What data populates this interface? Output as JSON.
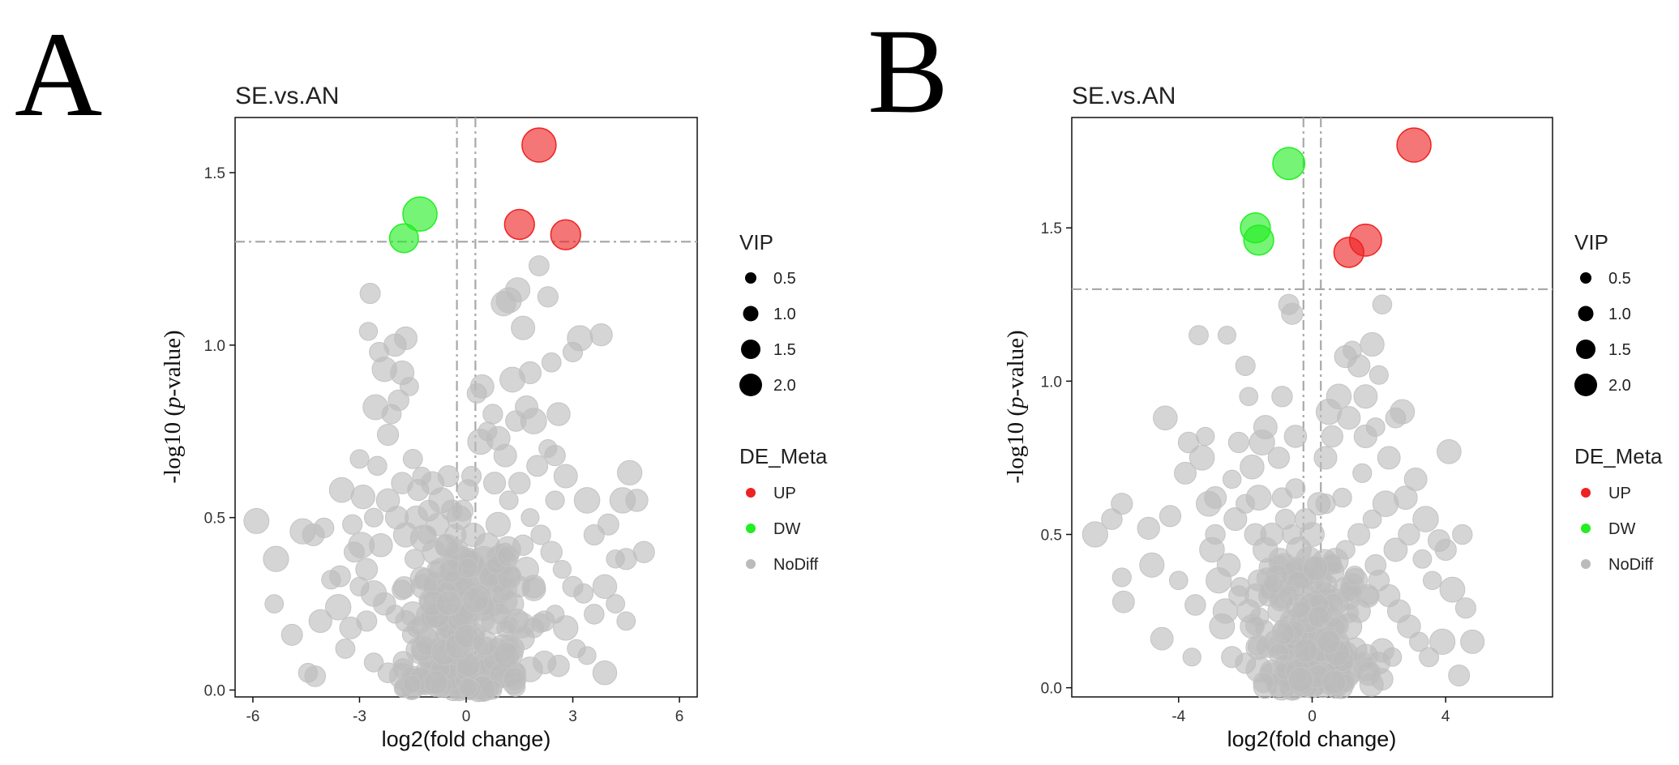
{
  "panel_labels": [
    "A",
    "B"
  ],
  "legend": {
    "size_title": "VIP",
    "size_entries": [
      "0.5",
      "1.0",
      "1.5",
      "2.0"
    ],
    "color_title": "DE_Meta",
    "color_entries": [
      {
        "label": "UP",
        "color": "#ee2222"
      },
      {
        "label": "DW",
        "color": "#22ee22"
      },
      {
        "label": "NoDiff",
        "color": "#bbbbbb"
      }
    ]
  },
  "chart_data": [
    {
      "type": "scatter",
      "title": "SE.vs.AN",
      "xlabel": "log2(fold change)",
      "ylabel_prefix": "-log10 (",
      "ylabel_italic": "p",
      "ylabel_suffix": "-value)",
      "xlim": [
        -6.5,
        6.5
      ],
      "ylim": [
        -0.02,
        1.66
      ],
      "xticks": [
        "-6",
        "-3",
        "0",
        "3",
        "6"
      ],
      "xtick_values": [
        -6,
        -3,
        0,
        3,
        6
      ],
      "yticks": [
        "0.0",
        "0.5",
        "1.0",
        "1.5"
      ],
      "ytick_values": [
        0,
        0.5,
        1.0,
        1.5
      ],
      "threshold_x": [
        -0.26,
        0.26
      ],
      "threshold_y": 1.3,
      "highlighted_points": [
        {
          "x": 2.05,
          "y": 1.58,
          "vip": 2.0,
          "group": "UP"
        },
        {
          "x": 1.5,
          "y": 1.35,
          "vip": 1.6,
          "group": "UP"
        },
        {
          "x": 2.8,
          "y": 1.32,
          "vip": 1.6,
          "group": "UP"
        },
        {
          "x": -1.3,
          "y": 1.38,
          "vip": 2.0,
          "group": "DW"
        },
        {
          "x": -1.75,
          "y": 1.31,
          "vip": 1.5,
          "group": "DW"
        }
      ],
      "nodiff_points": [
        [
          -5.9,
          0.49
        ],
        [
          -5.35,
          0.38
        ],
        [
          -5.4,
          0.25
        ],
        [
          -4.9,
          0.16
        ],
        [
          -4.6,
          0.46
        ],
        [
          -4.45,
          0.05
        ],
        [
          -4.25,
          0.04
        ],
        [
          -4.3,
          0.45
        ],
        [
          -4.1,
          0.2
        ],
        [
          -4.0,
          0.47
        ],
        [
          -3.8,
          0.32
        ],
        [
          -3.6,
          0.24
        ],
        [
          -3.55,
          0.33
        ],
        [
          -3.4,
          0.12
        ],
        [
          -3.25,
          0.18
        ],
        [
          -3.15,
          0.4
        ],
        [
          -3.0,
          0.67
        ],
        [
          -2.9,
          0.56
        ],
        [
          -2.8,
          0.2
        ],
        [
          -2.7,
          1.15
        ],
        [
          -2.75,
          1.04
        ],
        [
          -2.55,
          0.82
        ],
        [
          -2.45,
          0.98
        ],
        [
          -2.3,
          0.93
        ],
        [
          -2.2,
          0.74
        ],
        [
          -2.1,
          0.8
        ],
        [
          -2.0,
          1.0
        ],
        [
          -1.9,
          0.84
        ],
        [
          -1.8,
          0.92
        ],
        [
          -1.7,
          1.02
        ],
        [
          -1.6,
          0.88
        ],
        [
          -1.5,
          0.67
        ],
        [
          -1.35,
          0.58
        ],
        [
          -1.25,
          0.62
        ],
        [
          -1.2,
          0.44
        ],
        [
          -1.05,
          0.52
        ],
        [
          -0.95,
          0.6
        ],
        [
          -0.8,
          0.48
        ],
        [
          -0.7,
          0.55
        ],
        [
          -0.6,
          0.42
        ],
        [
          -0.5,
          0.62
        ],
        [
          -0.4,
          0.36
        ],
        [
          -0.3,
          0.45
        ],
        [
          -0.2,
          0.5
        ],
        [
          -0.1,
          0.52
        ],
        [
          0.05,
          0.58
        ],
        [
          0.15,
          0.62
        ],
        [
          0.3,
          0.86
        ],
        [
          0.45,
          0.88
        ],
        [
          0.6,
          0.75
        ],
        [
          0.75,
          0.8
        ],
        [
          0.9,
          0.73
        ],
        [
          1.05,
          1.12
        ],
        [
          1.2,
          1.13
        ],
        [
          1.3,
          0.9
        ],
        [
          1.45,
          1.16
        ],
        [
          1.6,
          1.05
        ],
        [
          1.7,
          0.82
        ],
        [
          1.8,
          0.92
        ],
        [
          1.9,
          0.78
        ],
        [
          2.05,
          1.23
        ],
        [
          2.3,
          1.14
        ],
        [
          2.4,
          0.95
        ],
        [
          2.5,
          0.68
        ],
        [
          2.6,
          0.8
        ],
        [
          2.8,
          0.62
        ],
        [
          3.0,
          0.98
        ],
        [
          3.2,
          1.02
        ],
        [
          3.4,
          0.55
        ],
        [
          3.6,
          0.45
        ],
        [
          3.8,
          1.03
        ],
        [
          4.0,
          0.48
        ],
        [
          4.2,
          0.38
        ],
        [
          4.4,
          0.55
        ],
        [
          4.5,
          0.38
        ],
        [
          4.6,
          0.63
        ],
        [
          4.8,
          0.55
        ],
        [
          5.0,
          0.4
        ],
        [
          4.5,
          0.2
        ],
        [
          3.9,
          0.05
        ],
        [
          -3.5,
          0.58
        ],
        [
          -3.2,
          0.48
        ],
        [
          -2.95,
          0.42
        ],
        [
          -2.6,
          0.5
        ],
        [
          -2.4,
          0.42
        ],
        [
          -2.2,
          0.55
        ],
        [
          -1.95,
          0.5
        ],
        [
          -1.7,
          0.45
        ],
        [
          -1.45,
          0.38
        ],
        [
          -1.2,
          0.3
        ],
        [
          -0.9,
          0.3
        ],
        [
          -0.6,
          0.28
        ],
        [
          -0.3,
          0.25
        ],
        [
          0.0,
          0.3
        ],
        [
          0.3,
          0.35
        ],
        [
          0.6,
          0.42
        ],
        [
          0.9,
          0.48
        ],
        [
          1.2,
          0.55
        ],
        [
          1.5,
          0.6
        ],
        [
          1.8,
          0.5
        ],
        [
          2.1,
          0.45
        ],
        [
          2.4,
          0.4
        ],
        [
          2.7,
          0.35
        ],
        [
          3.0,
          0.3
        ],
        [
          3.3,
          0.28
        ],
        [
          3.6,
          0.22
        ],
        [
          3.9,
          0.3
        ],
        [
          4.2,
          0.25
        ],
        [
          -3.0,
          0.3
        ],
        [
          -2.6,
          0.28
        ],
        [
          -2.3,
          0.25
        ],
        [
          -2.0,
          0.22
        ],
        [
          -1.7,
          0.2
        ],
        [
          -1.4,
          0.18
        ],
        [
          -1.1,
          0.15
        ],
        [
          -0.8,
          0.12
        ],
        [
          -0.5,
          0.1
        ],
        [
          -0.2,
          0.08
        ],
        [
          0.1,
          0.06
        ],
        [
          0.4,
          0.05
        ],
        [
          0.7,
          0.08
        ],
        [
          1.0,
          0.1
        ],
        [
          1.3,
          0.12
        ],
        [
          1.6,
          0.15
        ],
        [
          1.9,
          0.18
        ],
        [
          2.2,
          0.2
        ],
        [
          2.5,
          0.22
        ],
        [
          2.8,
          0.18
        ],
        [
          3.1,
          0.12
        ],
        [
          3.4,
          0.1
        ],
        [
          -2.6,
          0.08
        ],
        [
          -2.2,
          0.05
        ],
        [
          -1.8,
          0.04
        ],
        [
          -1.4,
          0.03
        ],
        [
          -1.0,
          0.02
        ],
        [
          -0.6,
          0.01
        ],
        [
          -0.2,
          0.02
        ],
        [
          0.2,
          0.03
        ],
        [
          0.6,
          0.02
        ],
        [
          1.0,
          0.04
        ],
        [
          1.4,
          0.05
        ],
        [
          1.8,
          0.06
        ],
        [
          2.2,
          0.08
        ],
        [
          2.6,
          0.07
        ],
        [
          -1.5,
          0.22
        ],
        [
          -1.0,
          0.26
        ],
        [
          -0.5,
          0.32
        ],
        [
          0.5,
          0.38
        ],
        [
          1.0,
          0.33
        ],
        [
          1.5,
          0.3
        ],
        [
          -1.8,
          0.6
        ],
        [
          -1.4,
          0.5
        ],
        [
          -0.9,
          0.4
        ],
        [
          -0.4,
          0.2
        ],
        [
          0.2,
          0.15
        ],
        [
          0.8,
          0.2
        ],
        [
          1.3,
          0.25
        ],
        [
          1.7,
          0.35
        ],
        [
          2.0,
          0.65
        ],
        [
          2.3,
          0.7
        ],
        [
          0.4,
          0.72
        ],
        [
          0.8,
          0.6
        ],
        [
          1.1,
          0.68
        ],
        [
          1.4,
          0.78
        ],
        [
          0.2,
          0.45
        ],
        [
          -0.1,
          0.38
        ],
        [
          -0.4,
          0.52
        ],
        [
          -0.8,
          0.22
        ],
        [
          -1.2,
          0.12
        ],
        [
          0.9,
          0.28
        ],
        [
          1.1,
          0.4
        ],
        [
          1.6,
          0.42
        ],
        [
          0.5,
          0.2
        ],
        [
          -0.3,
          0.15
        ],
        [
          -0.7,
          0.35
        ],
        [
          -1.1,
          0.45
        ],
        [
          1.9,
          0.3
        ],
        [
          2.5,
          0.55
        ],
        [
          -2.5,
          0.65
        ],
        [
          -2.8,
          0.35
        ]
      ]
    },
    {
      "type": "scatter",
      "title": "SE.vs.AN",
      "xlabel": "log2(fold change)",
      "ylabel_prefix": "-log10 (",
      "ylabel_italic": "p",
      "ylabel_suffix": "-value)",
      "xlim": [
        -7.2,
        7.2
      ],
      "ylim": [
        -0.03,
        1.86
      ],
      "xticks": [
        "-4",
        "0",
        "4"
      ],
      "xtick_values": [
        -4,
        0,
        4
      ],
      "yticks": [
        "0.0",
        "0.5",
        "1.0",
        "1.5"
      ],
      "ytick_values": [
        0,
        0.5,
        1.0,
        1.5
      ],
      "threshold_x": [
        -0.26,
        0.26
      ],
      "threshold_y": 1.3,
      "highlighted_points": [
        {
          "x": 3.05,
          "y": 1.77,
          "vip": 2.0,
          "group": "UP"
        },
        {
          "x": 1.6,
          "y": 1.46,
          "vip": 1.8,
          "group": "UP"
        },
        {
          "x": 1.1,
          "y": 1.42,
          "vip": 1.6,
          "group": "UP"
        },
        {
          "x": -0.7,
          "y": 1.71,
          "vip": 1.8,
          "group": "DW"
        },
        {
          "x": -1.7,
          "y": 1.5,
          "vip": 1.6,
          "group": "DW"
        },
        {
          "x": -1.6,
          "y": 1.46,
          "vip": 1.6,
          "group": "DW"
        }
      ],
      "nodiff_points": [
        [
          -6.5,
          0.5
        ],
        [
          -6.0,
          0.55
        ],
        [
          -5.7,
          0.6
        ],
        [
          -5.7,
          0.36
        ],
        [
          -5.65,
          0.28
        ],
        [
          -4.9,
          0.52
        ],
        [
          -4.8,
          0.4
        ],
        [
          -4.5,
          0.16
        ],
        [
          -4.4,
          0.88
        ],
        [
          -4.25,
          0.56
        ],
        [
          -4.0,
          0.35
        ],
        [
          -3.8,
          0.7
        ],
        [
          -3.7,
          0.8
        ],
        [
          -3.5,
          0.27
        ],
        [
          -3.4,
          1.15
        ],
        [
          -3.2,
          0.82
        ],
        [
          -3.1,
          0.6
        ],
        [
          -2.9,
          0.5
        ],
        [
          -2.7,
          0.2
        ],
        [
          -2.55,
          1.15
        ],
        [
          -2.4,
          0.68
        ],
        [
          -2.2,
          0.8
        ],
        [
          -2.0,
          1.05
        ],
        [
          -1.9,
          0.95
        ],
        [
          -1.8,
          0.72
        ],
        [
          -1.6,
          0.62
        ],
        [
          -1.4,
          0.85
        ],
        [
          -1.2,
          0.5
        ],
        [
          -1.0,
          0.75
        ],
        [
          -0.9,
          0.95
        ],
        [
          -0.8,
          0.55
        ],
        [
          -0.7,
          1.25
        ],
        [
          -0.6,
          1.22
        ],
        [
          -0.5,
          0.65
        ],
        [
          -0.4,
          0.45
        ],
        [
          -0.2,
          0.55
        ],
        [
          0.0,
          0.5
        ],
        [
          0.2,
          0.6
        ],
        [
          0.4,
          0.75
        ],
        [
          0.6,
          0.82
        ],
        [
          0.8,
          0.95
        ],
        [
          1.0,
          1.08
        ],
        [
          1.1,
          0.88
        ],
        [
          1.2,
          1.1
        ],
        [
          1.4,
          1.05
        ],
        [
          1.6,
          0.95
        ],
        [
          1.8,
          1.12
        ],
        [
          1.9,
          0.85
        ],
        [
          2.0,
          1.02
        ],
        [
          2.1,
          1.25
        ],
        [
          2.3,
          0.75
        ],
        [
          2.5,
          0.88
        ],
        [
          2.7,
          0.9
        ],
        [
          2.9,
          0.5
        ],
        [
          3.1,
          0.68
        ],
        [
          3.3,
          0.42
        ],
        [
          3.6,
          0.35
        ],
        [
          3.8,
          0.48
        ],
        [
          4.0,
          0.45
        ],
        [
          4.2,
          0.32
        ],
        [
          4.4,
          0.04
        ],
        [
          4.5,
          0.5
        ],
        [
          4.6,
          0.26
        ],
        [
          4.8,
          0.15
        ],
        [
          3.9,
          0.15
        ],
        [
          4.1,
          0.77
        ],
        [
          -3.0,
          0.45
        ],
        [
          -2.8,
          0.35
        ],
        [
          -2.5,
          0.4
        ],
        [
          -2.2,
          0.3
        ],
        [
          -1.9,
          0.25
        ],
        [
          -1.6,
          0.35
        ],
        [
          -1.3,
          0.3
        ],
        [
          -1.0,
          0.25
        ],
        [
          -0.7,
          0.2
        ],
        [
          -0.4,
          0.15
        ],
        [
          -0.1,
          0.12
        ],
        [
          0.2,
          0.1
        ],
        [
          0.5,
          0.12
        ],
        [
          0.8,
          0.15
        ],
        [
          1.1,
          0.2
        ],
        [
          1.4,
          0.25
        ],
        [
          1.7,
          0.3
        ],
        [
          2.0,
          0.35
        ],
        [
          2.3,
          0.3
        ],
        [
          2.6,
          0.25
        ],
        [
          2.9,
          0.2
        ],
        [
          3.2,
          0.15
        ],
        [
          -2.4,
          0.1
        ],
        [
          -2.0,
          0.08
        ],
        [
          -1.6,
          0.06
        ],
        [
          -1.2,
          0.05
        ],
        [
          -0.8,
          0.04
        ],
        [
          -0.4,
          0.03
        ],
        [
          0.0,
          0.02
        ],
        [
          0.4,
          0.03
        ],
        [
          0.8,
          0.04
        ],
        [
          1.2,
          0.05
        ],
        [
          1.6,
          0.06
        ],
        [
          2.0,
          0.08
        ],
        [
          2.4,
          0.1
        ],
        [
          -1.4,
          0.45
        ],
        [
          -1.0,
          0.4
        ],
        [
          -0.6,
          0.35
        ],
        [
          -0.2,
          0.3
        ],
        [
          0.2,
          0.35
        ],
        [
          0.6,
          0.4
        ],
        [
          1.0,
          0.45
        ],
        [
          1.4,
          0.5
        ],
        [
          1.8,
          0.55
        ],
        [
          2.2,
          0.6
        ],
        [
          -2.0,
          0.6
        ],
        [
          -2.3,
          0.55
        ],
        [
          -1.7,
          0.5
        ],
        [
          0.4,
          0.6
        ],
        [
          0.9,
          0.62
        ],
        [
          1.5,
          0.7
        ],
        [
          -0.9,
          0.62
        ],
        [
          -0.3,
          0.25
        ],
        [
          0.3,
          0.2
        ],
        [
          -1.1,
          0.15
        ],
        [
          1.3,
          0.35
        ],
        [
          1.9,
          0.4
        ],
        [
          -1.8,
          0.2
        ],
        [
          2.5,
          0.45
        ],
        [
          -2.6,
          0.25
        ],
        [
          0.7,
          0.28
        ],
        [
          -0.6,
          0.5
        ],
        [
          0.1,
          0.4
        ],
        [
          1.0,
          0.32
        ],
        [
          -3.3,
          0.75
        ],
        [
          -2.9,
          0.62
        ],
        [
          2.8,
          0.62
        ],
        [
          3.4,
          0.55
        ],
        [
          -0.5,
          0.82
        ],
        [
          0.5,
          0.9
        ],
        [
          -1.5,
          0.8
        ],
        [
          1.6,
          0.82
        ],
        [
          -3.6,
          0.1
        ],
        [
          3.5,
          0.1
        ]
      ]
    }
  ]
}
